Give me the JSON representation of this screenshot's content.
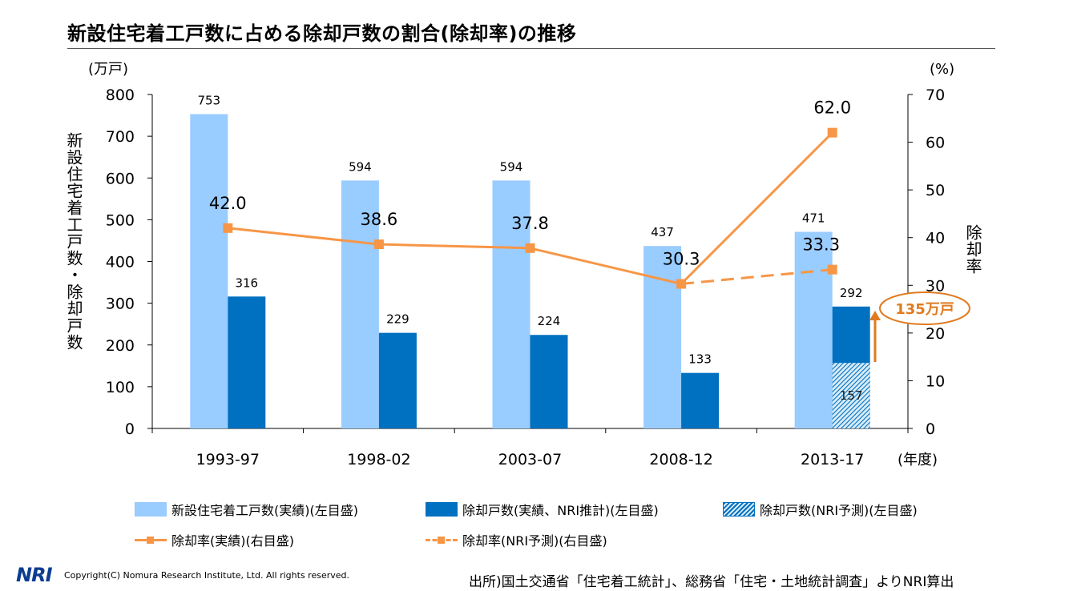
{
  "title": "新設住宅着工戸数に占める除却戸数の割合(除却率)の推移",
  "chart_data": {
    "type": "bar",
    "categories": [
      "1993-97",
      "1998-02",
      "2003-07",
      "2008-12",
      "2013-17"
    ],
    "x_unit": "(年度)",
    "left_axis": {
      "unit": "(万戸)",
      "label": "新設住宅着工戸数・除却戸数",
      "ylim": [
        0,
        800
      ],
      "ticks": [
        "0",
        "100",
        "200",
        "300",
        "400",
        "500",
        "600",
        "700",
        "800"
      ]
    },
    "right_axis": {
      "unit": "(%)",
      "label": "除却率",
      "ylim": [
        0,
        70
      ],
      "ticks": [
        "0",
        "10",
        "20",
        "30",
        "40",
        "50",
        "60",
        "70"
      ]
    },
    "series": [
      {
        "name": "新設住宅着工戸数(実績)(左目盛)",
        "type": "bar",
        "axis": "left",
        "color": "#99ccff",
        "values": [
          753,
          594,
          594,
          437,
          471
        ],
        "labels": [
          "753",
          "594",
          "594",
          "437",
          "471"
        ]
      },
      {
        "name": "除却戸数(実績、NRI推計)(左目盛)",
        "type": "bar",
        "axis": "left",
        "color": "#0070c0",
        "values": [
          316,
          229,
          224,
          133,
          292
        ],
        "labels": [
          "316",
          "229",
          "224",
          "133",
          "292"
        ]
      },
      {
        "name": "除却戸数(NRI予測)(左目盛)",
        "type": "bar-hatched",
        "axis": "left",
        "color": "#0070c0",
        "values": [
          null,
          null,
          null,
          null,
          157
        ],
        "labels": [
          "",
          "",
          "",
          "",
          "157"
        ]
      },
      {
        "name": "除却率(実績)(右目盛)",
        "type": "line",
        "axis": "right",
        "color": "#f79646",
        "values": [
          42.0,
          38.6,
          37.8,
          30.3,
          62.0
        ],
        "labels": [
          "42.0",
          "38.6",
          "37.8",
          "30.3",
          "62.0"
        ]
      },
      {
        "name": "除却率(NRI予測)(右目盛)",
        "type": "line-dashed",
        "axis": "right",
        "color": "#f79646",
        "values": [
          null,
          null,
          null,
          30.3,
          33.3
        ],
        "labels": [
          "",
          "",
          "",
          "",
          "33.3"
        ]
      }
    ],
    "annotation": {
      "text": "135万戸",
      "color": "#e07b20"
    }
  },
  "footer": {
    "logo": "NRI",
    "copyright": "Copyright(C) Nomura Research Institute, Ltd. All rights reserved.",
    "source": "出所)国土交通省「住宅着工統計」、総務省「住宅・土地統計調査」よりNRI算出"
  }
}
